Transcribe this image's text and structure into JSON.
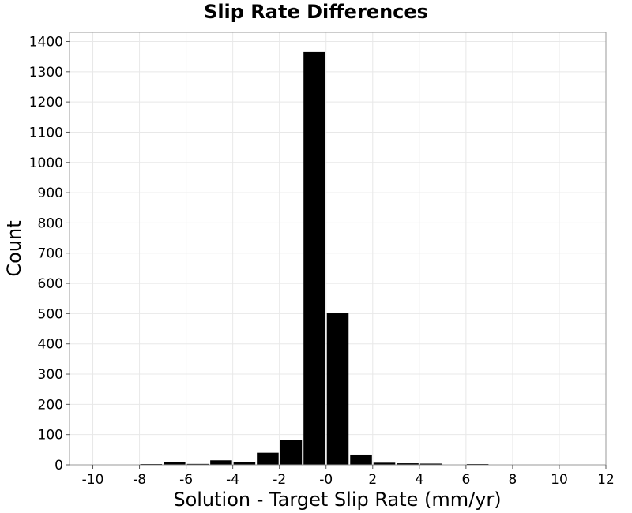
{
  "chart_data": {
    "type": "bar",
    "title": "Slip Rate Differences",
    "xlabel": "Solution - Target Slip Rate (mm/yr)",
    "ylabel": "Count",
    "xlim": [
      -11,
      12
    ],
    "ylim": [
      0,
      1430
    ],
    "xticks": [
      -10,
      -8,
      -6,
      -4,
      -2,
      0,
      2,
      4,
      6,
      8,
      10,
      12
    ],
    "yticks": [
      0,
      100,
      200,
      300,
      400,
      500,
      600,
      700,
      800,
      900,
      1000,
      1100,
      1200,
      1300,
      1400
    ],
    "xtick_labels": [
      "-10",
      "-8",
      "-6",
      "-4",
      "-2",
      "-0",
      "2",
      "4",
      "6",
      "8",
      "10",
      "12"
    ],
    "ytick_labels": [
      "0",
      "100",
      "200",
      "300",
      "400",
      "500",
      "600",
      "700",
      "800",
      "900",
      "1000",
      "1100",
      "1200",
      "1300",
      "1400"
    ],
    "bin_width": 1,
    "bins": [
      {
        "x": -7.5,
        "count": 1
      },
      {
        "x": -6.5,
        "count": 9
      },
      {
        "x": -5.5,
        "count": 3
      },
      {
        "x": -4.5,
        "count": 15
      },
      {
        "x": -3.5,
        "count": 8
      },
      {
        "x": -2.5,
        "count": 40
      },
      {
        "x": -1.5,
        "count": 83
      },
      {
        "x": -0.5,
        "count": 1365
      },
      {
        "x": 0.5,
        "count": 501
      },
      {
        "x": 1.5,
        "count": 34
      },
      {
        "x": 2.5,
        "count": 7
      },
      {
        "x": 3.5,
        "count": 5
      },
      {
        "x": 4.5,
        "count": 4
      },
      {
        "x": 6.5,
        "count": 2
      }
    ],
    "grid": true,
    "bar_color": "#000000"
  }
}
